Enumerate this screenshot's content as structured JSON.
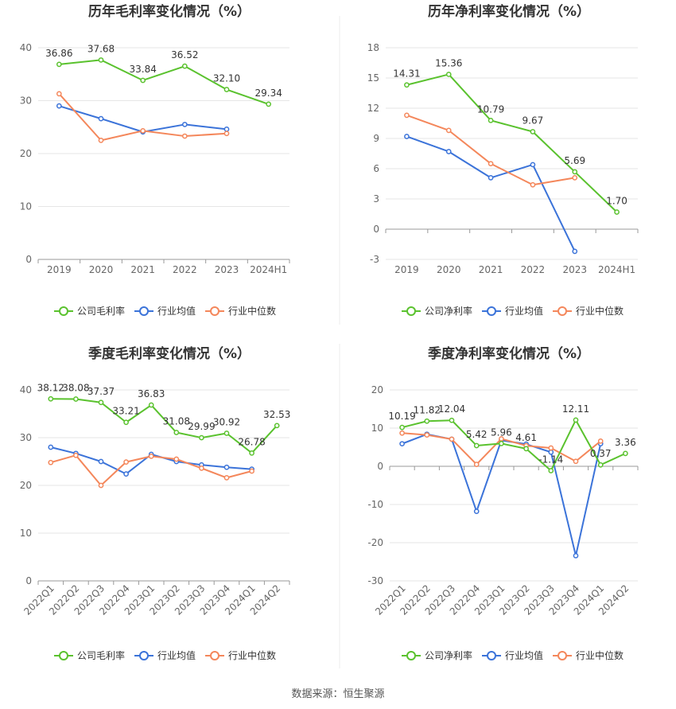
{
  "charts": [
    {
      "title": "历年毛利率变化情况（%）",
      "chart_type": "line",
      "categories": [
        "2019",
        "2020",
        "2021",
        "2022",
        "2023",
        "2024H1"
      ],
      "ylim": [
        0,
        40
      ],
      "yticks": [
        0,
        10,
        20,
        30,
        40
      ],
      "series": [
        {
          "name": "公司毛利率",
          "color": "#5ac22e",
          "values": [
            36.86,
            37.68,
            33.84,
            36.52,
            32.1,
            29.34
          ],
          "labels": true
        },
        {
          "name": "行业均值",
          "color": "#3b73d9",
          "values": [
            29.0,
            26.6,
            24.1,
            25.5,
            24.6,
            null
          ],
          "labels": false
        },
        {
          "name": "行业中位数",
          "color": "#f4875b",
          "values": [
            31.3,
            22.5,
            24.3,
            23.3,
            23.8,
            null
          ],
          "labels": false
        }
      ]
    },
    {
      "title": "历年净利率变化情况（%）",
      "chart_type": "line",
      "categories": [
        "2019",
        "2020",
        "2021",
        "2022",
        "2023",
        "2024H1"
      ],
      "ylim": [
        -3,
        18
      ],
      "yticks": [
        -3,
        0,
        3,
        6,
        9,
        12,
        15,
        18
      ],
      "series": [
        {
          "name": "公司净利率",
          "color": "#5ac22e",
          "values": [
            14.31,
            15.36,
            10.79,
            9.67,
            5.69,
            1.7
          ],
          "labels": true
        },
        {
          "name": "行业均值",
          "color": "#3b73d9",
          "values": [
            9.2,
            7.7,
            5.1,
            6.4,
            -2.2,
            null
          ],
          "labels": false
        },
        {
          "name": "行业中位数",
          "color": "#f4875b",
          "values": [
            11.3,
            9.8,
            6.5,
            4.4,
            5.1,
            null
          ],
          "labels": false
        }
      ]
    },
    {
      "title": "季度毛利率变化情况（%）",
      "chart_type": "line",
      "categories": [
        "2022Q1",
        "2022Q2",
        "2022Q3",
        "2022Q4",
        "2023Q1",
        "2023Q2",
        "2023Q3",
        "2023Q4",
        "2024Q1",
        "2024Q2"
      ],
      "ylim": [
        0,
        40
      ],
      "yticks": [
        0,
        10,
        20,
        30,
        40
      ],
      "series": [
        {
          "name": "公司毛利率",
          "color": "#5ac22e",
          "values": [
            38.12,
            38.08,
            37.37,
            33.21,
            36.83,
            31.08,
            29.99,
            30.92,
            26.78,
            32.53
          ],
          "labels": true
        },
        {
          "name": "行业均值",
          "color": "#3b73d9",
          "values": [
            28.0,
            26.7,
            25.0,
            22.4,
            26.5,
            25.0,
            24.3,
            23.8,
            23.4,
            null
          ],
          "labels": false
        },
        {
          "name": "行业中位数",
          "color": "#f4875b",
          "values": [
            24.8,
            26.3,
            20.0,
            24.9,
            26.1,
            25.5,
            23.6,
            21.6,
            23.0,
            null
          ],
          "labels": false
        }
      ]
    },
    {
      "title": "季度净利率变化情况（%）",
      "chart_type": "line",
      "categories": [
        "2022Q1",
        "2022Q2",
        "2022Q3",
        "2022Q4",
        "2023Q1",
        "2023Q2",
        "2023Q3",
        "2023Q4",
        "2024Q1",
        "2024Q2"
      ],
      "ylim": [
        -30,
        20
      ],
      "yticks": [
        -30,
        -20,
        -10,
        0,
        10,
        20
      ],
      "series": [
        {
          "name": "公司净利率",
          "color": "#5ac22e",
          "values": [
            10.19,
            11.82,
            12.04,
            5.42,
            5.96,
            4.61,
            -1.14,
            12.11,
            0.37,
            3.36
          ],
          "labels": true
        },
        {
          "name": "行业均值",
          "color": "#3b73d9",
          "values": [
            5.9,
            8.4,
            7.1,
            -11.8,
            6.8,
            5.8,
            3.7,
            -23.4,
            5.9,
            null
          ],
          "labels": false
        },
        {
          "name": "行业中位数",
          "color": "#f4875b",
          "values": [
            8.7,
            8.2,
            7.1,
            0.5,
            7.2,
            5.4,
            4.8,
            1.3,
            6.6,
            null
          ],
          "labels": false
        }
      ]
    }
  ],
  "footer": "数据来源：恒生聚源"
}
